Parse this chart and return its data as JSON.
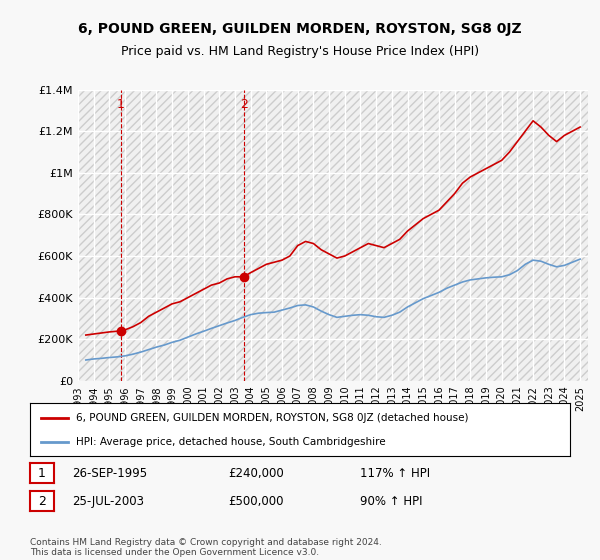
{
  "title": "6, POUND GREEN, GUILDEN MORDEN, ROYSTON, SG8 0JZ",
  "subtitle": "Price paid vs. HM Land Registry's House Price Index (HPI)",
  "ylabel": "",
  "ylim": [
    0,
    1400000
  ],
  "yticks": [
    0,
    200000,
    400000,
    600000,
    800000,
    1000000,
    1200000,
    1400000
  ],
  "ytick_labels": [
    "£0",
    "£200K",
    "£400K",
    "£600K",
    "£800K",
    "£1M",
    "£1.2M",
    "£1.4M"
  ],
  "xlim_start": 1993.0,
  "xlim_end": 2025.5,
  "xtick_years": [
    1993,
    1994,
    1995,
    1996,
    1997,
    1998,
    1999,
    2000,
    2001,
    2002,
    2003,
    2004,
    2005,
    2006,
    2007,
    2008,
    2009,
    2010,
    2011,
    2012,
    2013,
    2014,
    2015,
    2016,
    2017,
    2018,
    2019,
    2020,
    2021,
    2022,
    2023,
    2024,
    2025
  ],
  "bg_color": "#f0f0f0",
  "plot_bg_color": "#f5f5f5",
  "hatch_color": "#dddddd",
  "grid_color": "#ffffff",
  "red_line_color": "#cc0000",
  "blue_line_color": "#6699cc",
  "marker1_x": 1995.74,
  "marker1_y": 240000,
  "marker2_x": 2003.56,
  "marker2_y": 500000,
  "legend_line1": "6, POUND GREEN, GUILDEN MORDEN, ROYSTON, SG8 0JZ (detached house)",
  "legend_line2": "HPI: Average price, detached house, South Cambridgeshire",
  "table_row1_num": "1",
  "table_row1_date": "26-SEP-1995",
  "table_row1_price": "£240,000",
  "table_row1_hpi": "117% ↑ HPI",
  "table_row2_num": "2",
  "table_row2_date": "25-JUL-2003",
  "table_row2_price": "£500,000",
  "table_row2_hpi": "90% ↑ HPI",
  "footer": "Contains HM Land Registry data © Crown copyright and database right 2024.\nThis data is licensed under the Open Government Licence v3.0.",
  "red_x": [
    1993.5,
    1994.0,
    1994.5,
    1995.0,
    1995.74,
    1996.0,
    1996.5,
    1997.0,
    1997.5,
    1998.0,
    1998.5,
    1999.0,
    1999.5,
    2000.0,
    2000.5,
    2001.0,
    2001.5,
    2002.0,
    2002.5,
    2003.0,
    2003.56,
    2004.0,
    2004.5,
    2005.0,
    2005.5,
    2006.0,
    2006.5,
    2007.0,
    2007.5,
    2008.0,
    2008.5,
    2009.0,
    2009.5,
    2010.0,
    2010.5,
    2011.0,
    2011.5,
    2012.0,
    2012.5,
    2013.0,
    2013.5,
    2014.0,
    2014.5,
    2015.0,
    2015.5,
    2016.0,
    2016.5,
    2017.0,
    2017.5,
    2018.0,
    2018.5,
    2019.0,
    2019.5,
    2020.0,
    2020.5,
    2021.0,
    2021.5,
    2022.0,
    2022.5,
    2023.0,
    2023.5,
    2024.0,
    2024.5,
    2025.0
  ],
  "red_y": [
    220000,
    225000,
    230000,
    235000,
    240000,
    245000,
    260000,
    280000,
    310000,
    330000,
    350000,
    370000,
    380000,
    400000,
    420000,
    440000,
    460000,
    470000,
    490000,
    500000,
    500000,
    520000,
    540000,
    560000,
    570000,
    580000,
    600000,
    650000,
    670000,
    660000,
    630000,
    610000,
    590000,
    600000,
    620000,
    640000,
    660000,
    650000,
    640000,
    660000,
    680000,
    720000,
    750000,
    780000,
    800000,
    820000,
    860000,
    900000,
    950000,
    980000,
    1000000,
    1020000,
    1040000,
    1060000,
    1100000,
    1150000,
    1200000,
    1250000,
    1220000,
    1180000,
    1150000,
    1180000,
    1200000,
    1220000
  ],
  "blue_x": [
    1993.5,
    1994.0,
    1994.5,
    1995.0,
    1995.5,
    1996.0,
    1996.5,
    1997.0,
    1997.5,
    1998.0,
    1998.5,
    1999.0,
    1999.5,
    2000.0,
    2000.5,
    2001.0,
    2001.5,
    2002.0,
    2002.5,
    2003.0,
    2003.5,
    2004.0,
    2004.5,
    2005.0,
    2005.5,
    2006.0,
    2006.5,
    2007.0,
    2007.5,
    2008.0,
    2008.5,
    2009.0,
    2009.5,
    2010.0,
    2010.5,
    2011.0,
    2011.5,
    2012.0,
    2012.5,
    2013.0,
    2013.5,
    2014.0,
    2014.5,
    2015.0,
    2015.5,
    2016.0,
    2016.5,
    2017.0,
    2017.5,
    2018.0,
    2018.5,
    2019.0,
    2019.5,
    2020.0,
    2020.5,
    2021.0,
    2021.5,
    2022.0,
    2022.5,
    2023.0,
    2023.5,
    2024.0,
    2024.5,
    2025.0
  ],
  "blue_y": [
    100000,
    105000,
    108000,
    112000,
    115000,
    120000,
    128000,
    138000,
    150000,
    162000,
    172000,
    185000,
    195000,
    210000,
    225000,
    238000,
    252000,
    265000,
    278000,
    290000,
    305000,
    318000,
    325000,
    328000,
    330000,
    340000,
    350000,
    362000,
    365000,
    355000,
    335000,
    318000,
    305000,
    310000,
    315000,
    318000,
    315000,
    308000,
    305000,
    315000,
    330000,
    355000,
    375000,
    395000,
    410000,
    425000,
    445000,
    460000,
    475000,
    485000,
    490000,
    495000,
    498000,
    500000,
    510000,
    530000,
    560000,
    580000,
    575000,
    560000,
    548000,
    555000,
    570000,
    585000
  ]
}
